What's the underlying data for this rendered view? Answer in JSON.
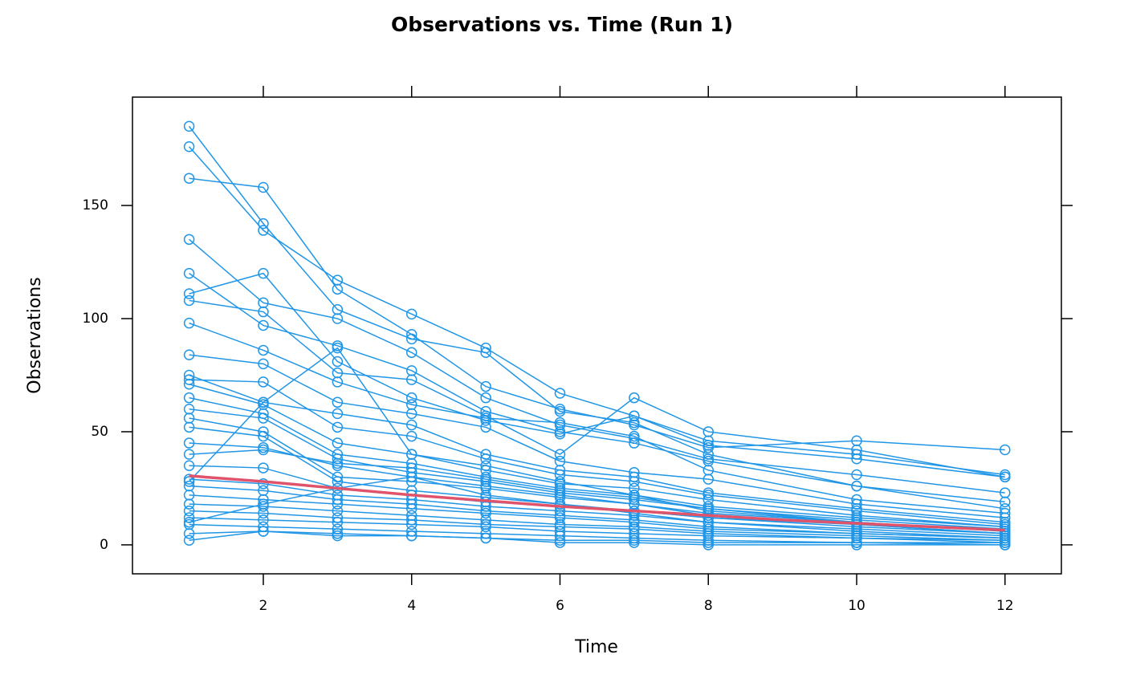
{
  "chart_data": {
    "type": "line",
    "title": "Observations vs. Time (Run 1)",
    "x_label": "Time",
    "y_label": "Observations",
    "xlim": [
      0.236,
      12.76
    ],
    "ylim": [
      -12.8,
      197.9
    ],
    "xticks": [
      2,
      4,
      6,
      8,
      10,
      12
    ],
    "yticks": [
      0,
      50,
      100,
      150
    ],
    "x": [
      1,
      2,
      3,
      4,
      5,
      6,
      7,
      8,
      10,
      12
    ],
    "color": "#2196e6",
    "series": [
      {
        "values": [
          185,
          142,
          104,
          91,
          85,
          59,
          54,
          40,
          26,
          16
        ]
      },
      {
        "values": [
          176,
          139,
          117,
          102,
          87,
          67,
          57,
          44,
          38,
          30
        ]
      },
      {
        "values": [
          162,
          158,
          113,
          93,
          70,
          60,
          53,
          43,
          46,
          42
        ]
      },
      {
        "values": [
          135,
          107,
          100,
          85,
          65,
          53,
          47,
          38,
          31,
          23
        ]
      },
      {
        "values": [
          120,
          97,
          88,
          77,
          59,
          50,
          45,
          37,
          26,
          19
        ]
      },
      {
        "values": [
          111,
          120,
          81,
          65,
          55,
          49,
          57,
          46,
          40,
          31
        ]
      },
      {
        "values": [
          108,
          103,
          76,
          73,
          57,
          40,
          65,
          50,
          42,
          30
        ]
      },
      {
        "values": [
          98,
          86,
          72,
          62,
          56,
          54,
          48,
          33,
          20,
          14
        ]
      },
      {
        "values": [
          84,
          80,
          63,
          58,
          52,
          37,
          32,
          29,
          18,
          12
        ]
      },
      {
        "values": [
          75,
          63,
          58,
          53,
          40,
          33,
          30,
          23,
          16,
          10
        ]
      },
      {
        "values": [
          73,
          72,
          52,
          48,
          38,
          31,
          28,
          22,
          15,
          9
        ]
      },
      {
        "values": [
          71,
          62,
          45,
          40,
          33,
          27,
          25,
          20,
          13,
          8
        ]
      },
      {
        "values": [
          65,
          58,
          40,
          36,
          30,
          25,
          22,
          17,
          12,
          8
        ]
      },
      {
        "values": [
          60,
          56,
          38,
          32,
          28,
          23,
          20,
          16,
          11,
          7
        ]
      },
      {
        "values": [
          56,
          50,
          30,
          28,
          25,
          21,
          18,
          14,
          10,
          6
        ]
      },
      {
        "values": [
          52,
          48,
          28,
          24,
          21,
          18,
          15,
          12,
          8,
          5
        ]
      },
      {
        "values": [
          45,
          43,
          35,
          30,
          26,
          22,
          18,
          13,
          9,
          5
        ]
      },
      {
        "values": [
          40,
          42,
          36,
          34,
          29,
          24,
          21,
          16,
          10,
          6
        ]
      },
      {
        "values": [
          35,
          34,
          25,
          22,
          19,
          17,
          15,
          12,
          9,
          5
        ]
      },
      {
        "values": [
          29,
          27,
          22,
          20,
          17,
          15,
          13,
          10,
          7,
          4
        ]
      },
      {
        "values": [
          26,
          24,
          20,
          18,
          15,
          13,
          11,
          8,
          5,
          3
        ]
      },
      {
        "values": [
          22,
          20,
          18,
          16,
          14,
          12,
          10,
          7,
          5,
          3
        ]
      },
      {
        "values": [
          18,
          17,
          15,
          13,
          11,
          9,
          8,
          6,
          4,
          2
        ]
      },
      {
        "values": [
          15,
          14,
          12,
          11,
          9,
          8,
          7,
          5,
          3,
          2
        ]
      },
      {
        "values": [
          12,
          11,
          10,
          9,
          8,
          6,
          5,
          4,
          3,
          1
        ]
      },
      {
        "values": [
          9,
          8,
          7,
          6,
          5,
          4,
          3,
          2,
          1,
          1
        ]
      },
      {
        "values": [
          5,
          6,
          5,
          4,
          3,
          2,
          2,
          1,
          1,
          0
        ]
      },
      {
        "values": [
          2,
          6,
          4,
          4,
          3,
          1,
          1,
          0,
          0,
          0
        ]
      },
      {
        "values": [
          28,
          63,
          87,
          40,
          35,
          28,
          22,
          15,
          10,
          6
        ]
      },
      {
        "values": [
          10,
          18,
          25,
          30,
          22,
          18,
          14,
          10,
          6,
          3
        ]
      }
    ],
    "trend": {
      "color": "#df536b",
      "x": [
        1,
        2,
        3,
        4,
        5,
        6,
        7,
        8,
        9,
        10,
        11,
        12
      ],
      "values": [
        30.5,
        28,
        25,
        22,
        19.5,
        17,
        15,
        13,
        11,
        9.5,
        8,
        6.5
      ]
    }
  }
}
